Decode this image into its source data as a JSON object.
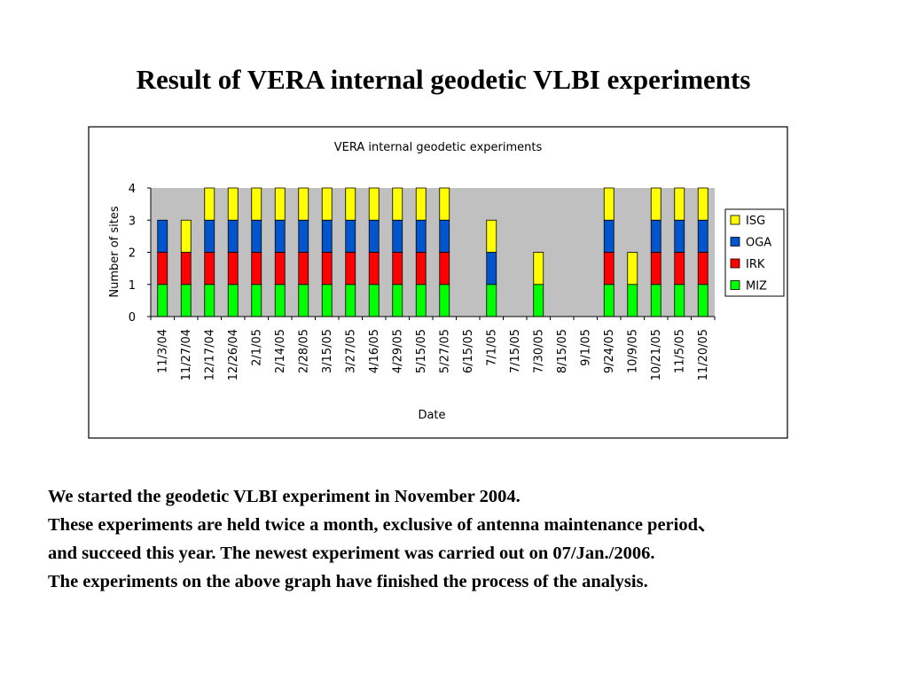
{
  "slide": {
    "title": "Result of VERA internal geodetic VLBI experiments",
    "paragraphs": [
      "We started the geodetic VLBI experiment in November 2004.",
      "These experiments are held twice a month, exclusive of antenna maintenance period、",
      "and succeed this year. The newest experiment was carried out on 07/Jan./2006.",
      "The experiments on the above graph have finished the process of the analysis."
    ]
  },
  "chart_data": {
    "type": "bar",
    "stacked": true,
    "title": "VERA internal geodetic experiments",
    "xlabel": "Date",
    "ylabel": "Number of sites",
    "ylim": [
      0,
      4
    ],
    "yticks": [
      0,
      1,
      2,
      3,
      4
    ],
    "grid": false,
    "plot_background": "#c0c0c0",
    "legend_position": "right",
    "categories": [
      "11/3/04",
      "11/27/04",
      "12/17/04",
      "12/26/04",
      "2/1/05",
      "2/14/05",
      "2/28/05",
      "3/15/05",
      "3/27/05",
      "4/16/05",
      "4/29/05",
      "5/15/05",
      "5/27/05",
      "6/15/05",
      "7/1/05",
      "7/15/05",
      "7/30/05",
      "8/15/05",
      "9/1/05",
      "9/24/05",
      "10/9/05",
      "10/21/05",
      "11/5/05",
      "11/20/05"
    ],
    "series": [
      {
        "name": "MIZ",
        "color": "#00ff00",
        "values": [
          1,
          1,
          1,
          1,
          1,
          1,
          1,
          1,
          1,
          1,
          1,
          1,
          1,
          0,
          1,
          0,
          1,
          0,
          0,
          1,
          1,
          1,
          1,
          1
        ]
      },
      {
        "name": "IRK",
        "color": "#ff0000",
        "values": [
          1,
          1,
          1,
          1,
          1,
          1,
          1,
          1,
          1,
          1,
          1,
          1,
          1,
          0,
          0,
          0,
          0,
          0,
          0,
          1,
          0,
          1,
          1,
          1
        ]
      },
      {
        "name": "OGA",
        "color": "#0055cc",
        "values": [
          1,
          0,
          1,
          1,
          1,
          1,
          1,
          1,
          1,
          1,
          1,
          1,
          1,
          0,
          1,
          0,
          0,
          0,
          0,
          1,
          0,
          1,
          1,
          1
        ]
      },
      {
        "name": "ISG",
        "color": "#ffff00",
        "values": [
          0,
          1,
          1,
          1,
          1,
          1,
          1,
          1,
          1,
          1,
          1,
          1,
          1,
          0,
          1,
          0,
          1,
          0,
          0,
          1,
          1,
          1,
          1,
          1
        ]
      }
    ]
  }
}
